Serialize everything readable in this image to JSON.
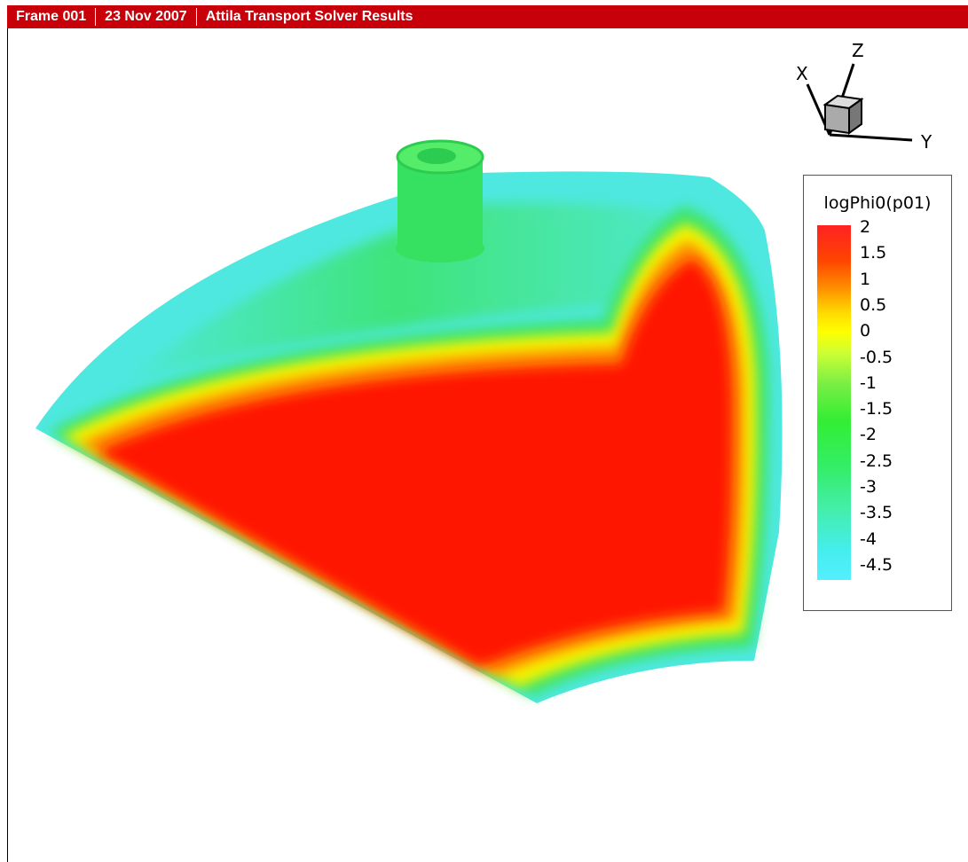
{
  "header": {
    "frame": "Frame 001",
    "date": "23 Nov 2007",
    "title": "Attila Transport Solver Results"
  },
  "axes": {
    "x": "X",
    "y": "Y",
    "z": "Z"
  },
  "legend": {
    "title": "logPhi0(p01)",
    "levels": [
      "2",
      "1.5",
      "1",
      "0.5",
      "0",
      "-0.5",
      "-1",
      "-1.5",
      "-2",
      "-2.5",
      "-3",
      "-3.5",
      "-4",
      "-4.5"
    ]
  }
}
